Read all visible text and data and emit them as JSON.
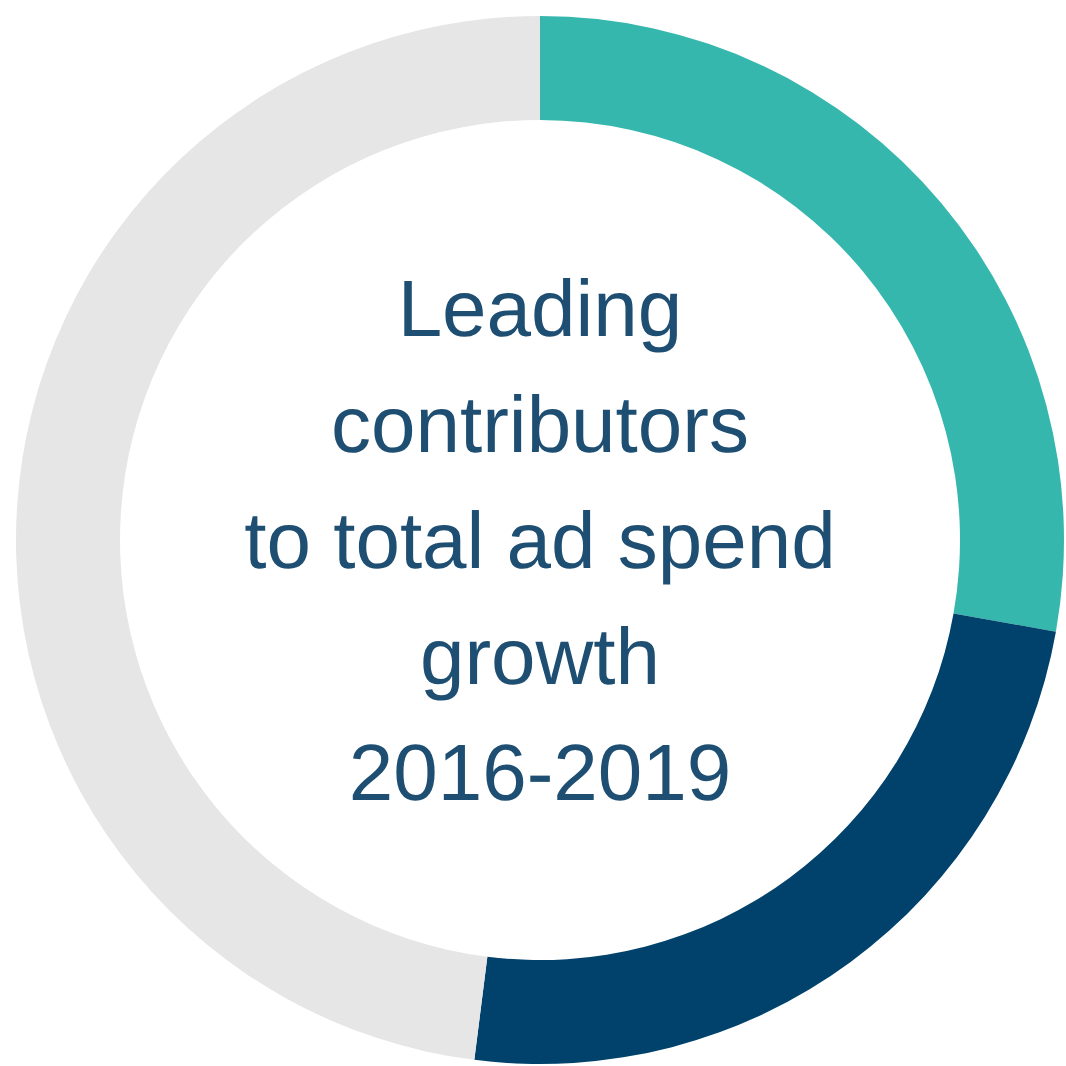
{
  "chart_data": {
    "type": "donut",
    "title": "Leading\ncontributors\nto total ad spend\ngrowth\n2016-2019",
    "categories": [
      null,
      null,
      null
    ],
    "values": [
      27.8,
      24.2,
      48.0
    ],
    "colors": [
      "#36b7ad",
      "#00426b",
      "#e6e6e6"
    ],
    "legend": false
  }
}
